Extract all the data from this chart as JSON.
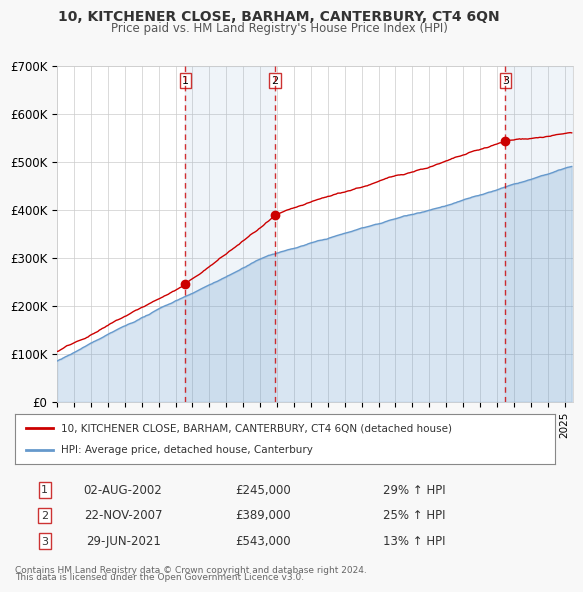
{
  "title_line1": "10, KITCHENER CLOSE, BARHAM, CANTERBURY, CT4 6QN",
  "title_line2": "Price paid vs. HM Land Registry's House Price Index (HPI)",
  "ylabel": "",
  "ylim": [
    0,
    700000
  ],
  "yticks": [
    0,
    100000,
    200000,
    300000,
    400000,
    500000,
    600000,
    700000
  ],
  "ytick_labels": [
    "£0",
    "£100K",
    "£200K",
    "£300K",
    "£400K",
    "£500K",
    "£600K",
    "£700K"
  ],
  "hpi_color": "#6699cc",
  "price_color": "#cc0000",
  "sale_dot_color": "#cc0000",
  "vline_color": "#cc0000",
  "background_color": "#f0f4ff",
  "plot_bg_color": "#ffffff",
  "sales": [
    {
      "date_num": 2002.58,
      "price": 245000,
      "label": "1",
      "date_str": "02-AUG-2002",
      "pct": "29%"
    },
    {
      "date_num": 2007.89,
      "price": 389000,
      "label": "2",
      "date_str": "22-NOV-2007",
      "pct": "25%"
    },
    {
      "date_num": 2021.49,
      "price": 543000,
      "label": "3",
      "date_str": "29-JUN-2021",
      "pct": "13%"
    }
  ],
  "legend_line1": "10, KITCHENER CLOSE, BARHAM, CANTERBURY, CT4 6QN (detached house)",
  "legend_line2": "HPI: Average price, detached house, Canterbury",
  "footer_line1": "Contains HM Land Registry data © Crown copyright and database right 2024.",
  "footer_line2": "This data is licensed under the Open Government Licence v3.0.",
  "xmin": 1995.0,
  "xmax": 2025.5
}
